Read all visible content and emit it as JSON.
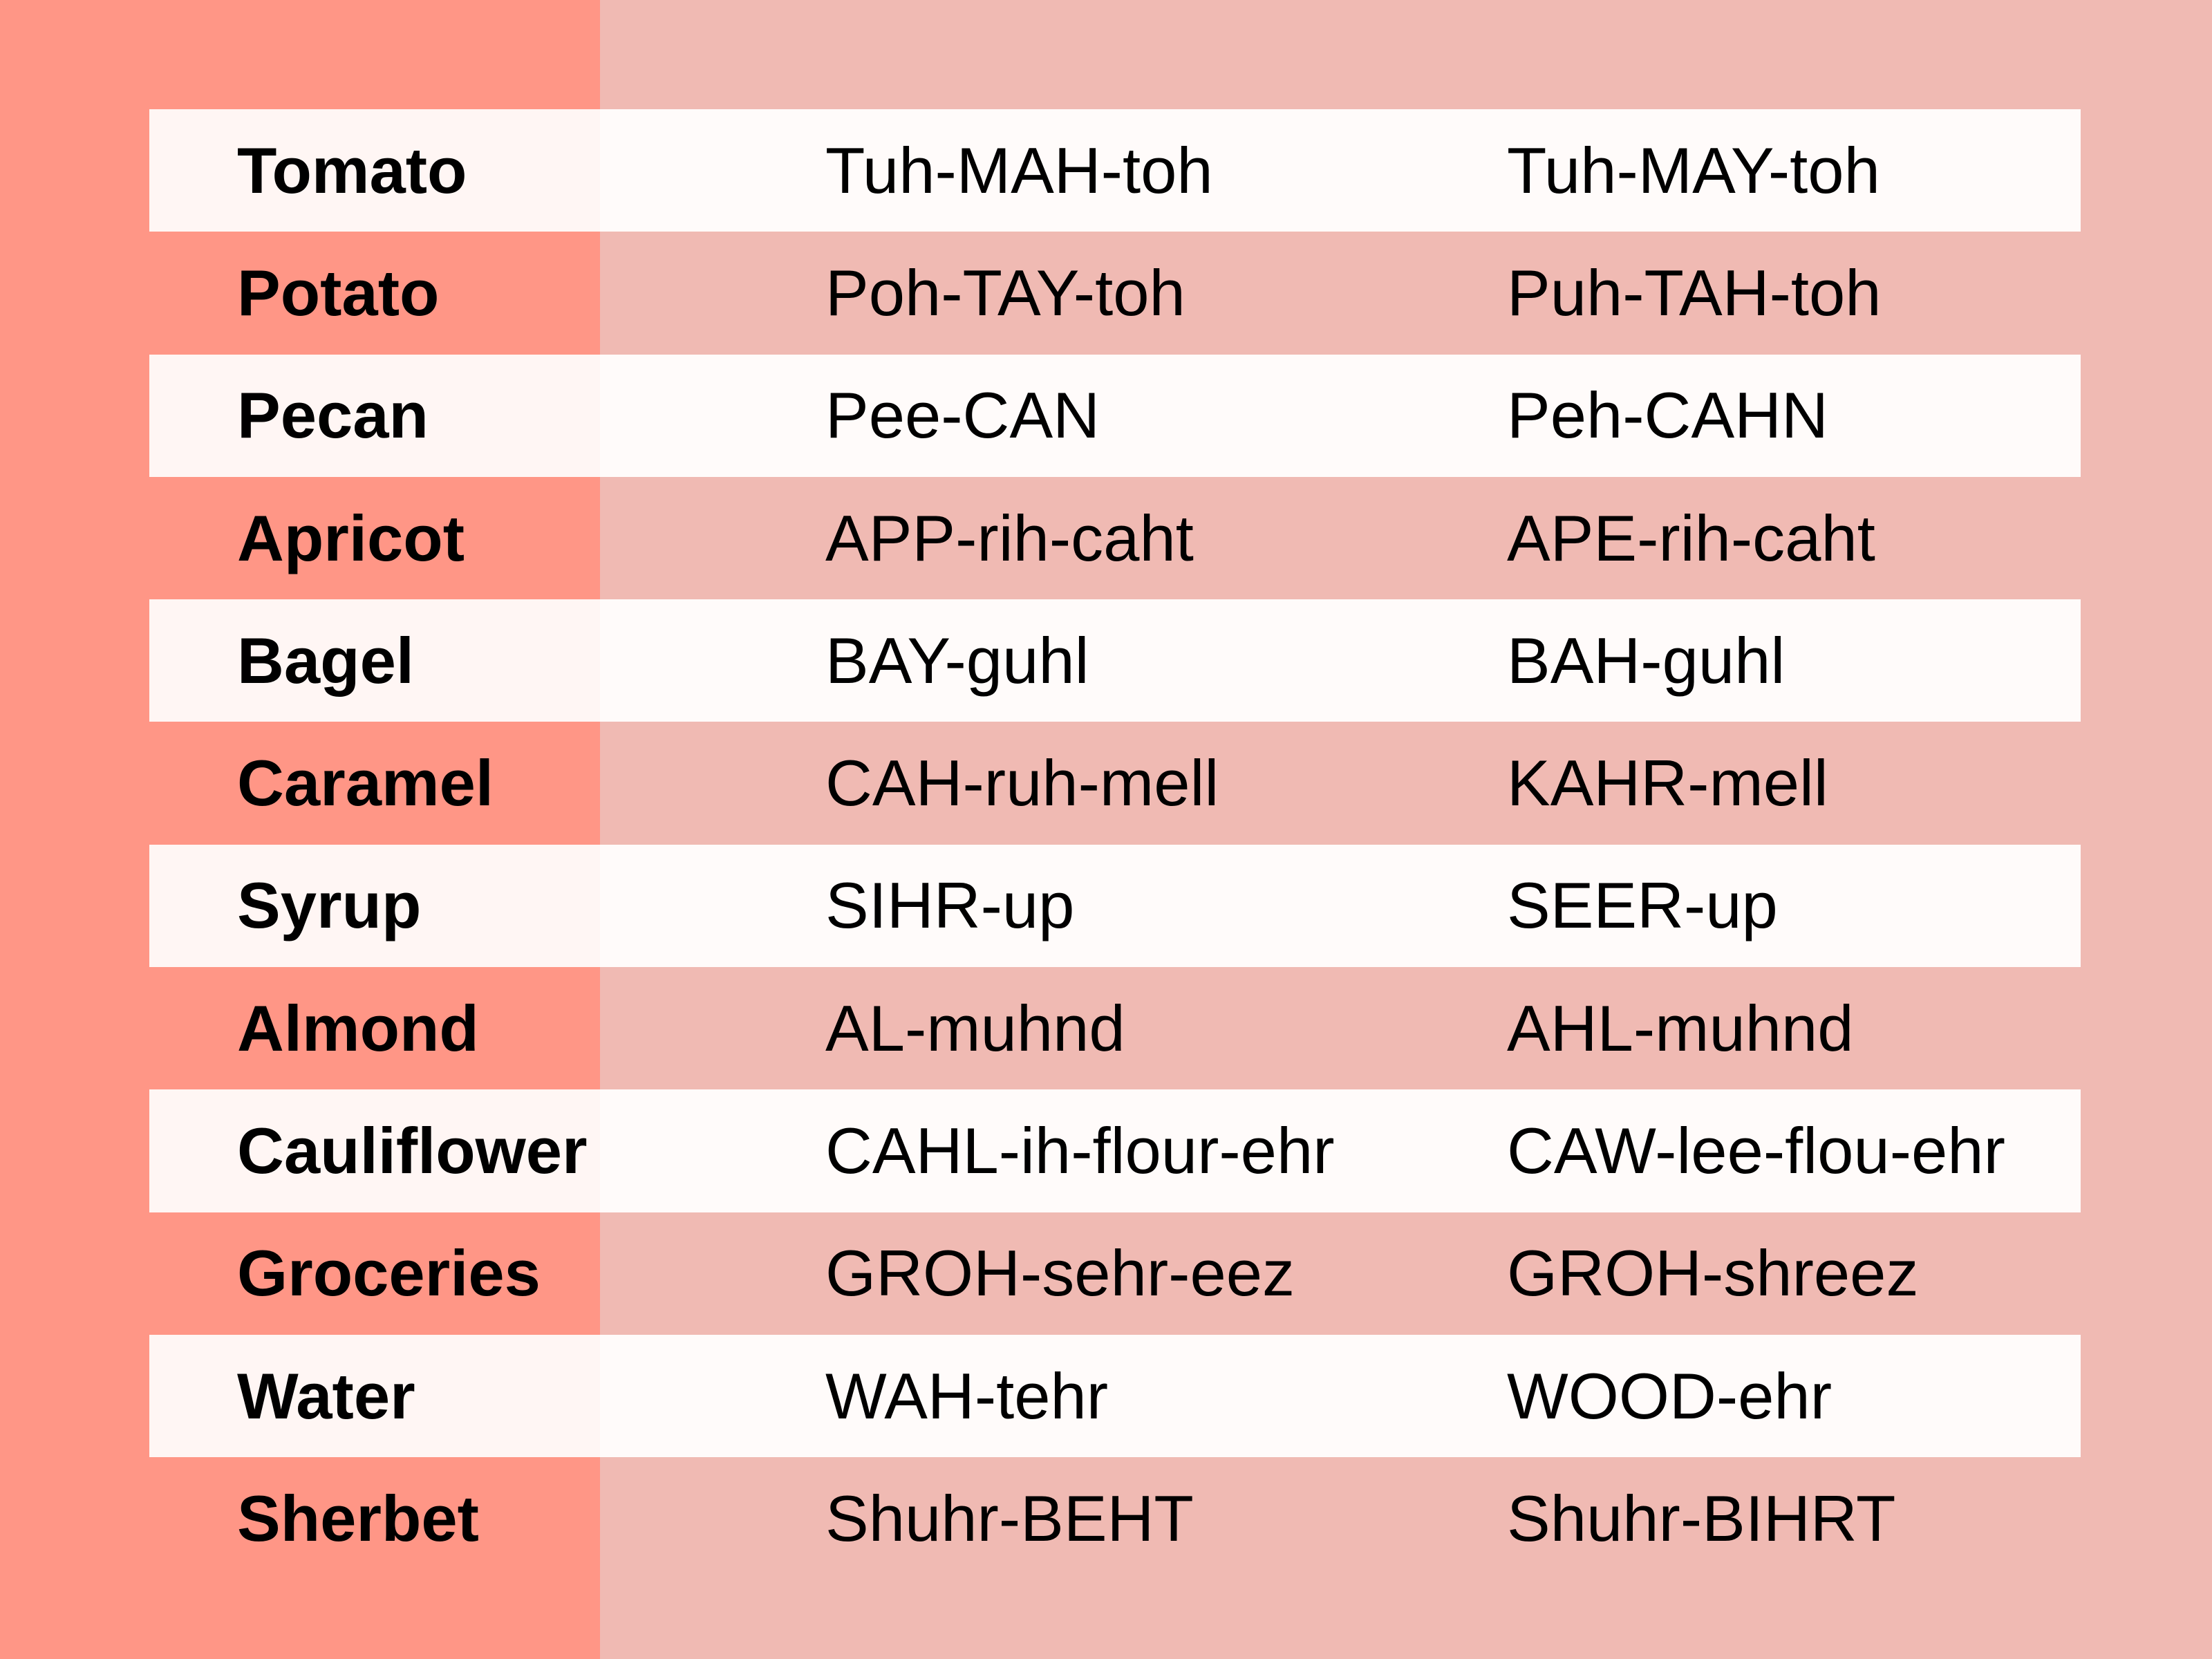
{
  "colors": {
    "left_panel": "#FF9686",
    "background": "#F0BAB3",
    "row_highlight": "#FFFBFA"
  },
  "rows": [
    {
      "word": "Tomato",
      "pron_a": "Tuh-MAH-toh",
      "pron_b": "Tuh-MAY-toh"
    },
    {
      "word": "Potato",
      "pron_a": "Poh-TAY-toh",
      "pron_b": "Puh-TAH-toh"
    },
    {
      "word": "Pecan",
      "pron_a": "Pee-CAN",
      "pron_b": "Peh-CAHN"
    },
    {
      "word": "Apricot",
      "pron_a": "APP-rih-caht",
      "pron_b": "APE-rih-caht"
    },
    {
      "word": "Bagel",
      "pron_a": "BAY-guhl",
      "pron_b": "BAH-guhl"
    },
    {
      "word": "Caramel",
      "pron_a": "CAH-ruh-mell",
      "pron_b": "KAHR-mell"
    },
    {
      "word": "Syrup",
      "pron_a": "SIHR-up",
      "pron_b": "SEER-up"
    },
    {
      "word": "Almond",
      "pron_a": "AL-muhnd",
      "pron_b": "AHL-muhnd"
    },
    {
      "word": "Cauliflower",
      "pron_a": "CAHL-ih-flour-ehr",
      "pron_b": "CAW-lee-flou-ehr"
    },
    {
      "word": "Groceries",
      "pron_a": "GROH-sehr-eez",
      "pron_b": "GROH-shreez"
    },
    {
      "word": "Water",
      "pron_a": "WAH-tehr",
      "pron_b": "WOOD-ehr"
    },
    {
      "word": "Sherbet",
      "pron_a": "Shuhr-BEHT",
      "pron_b": "Shuhr-BIHRT"
    }
  ]
}
